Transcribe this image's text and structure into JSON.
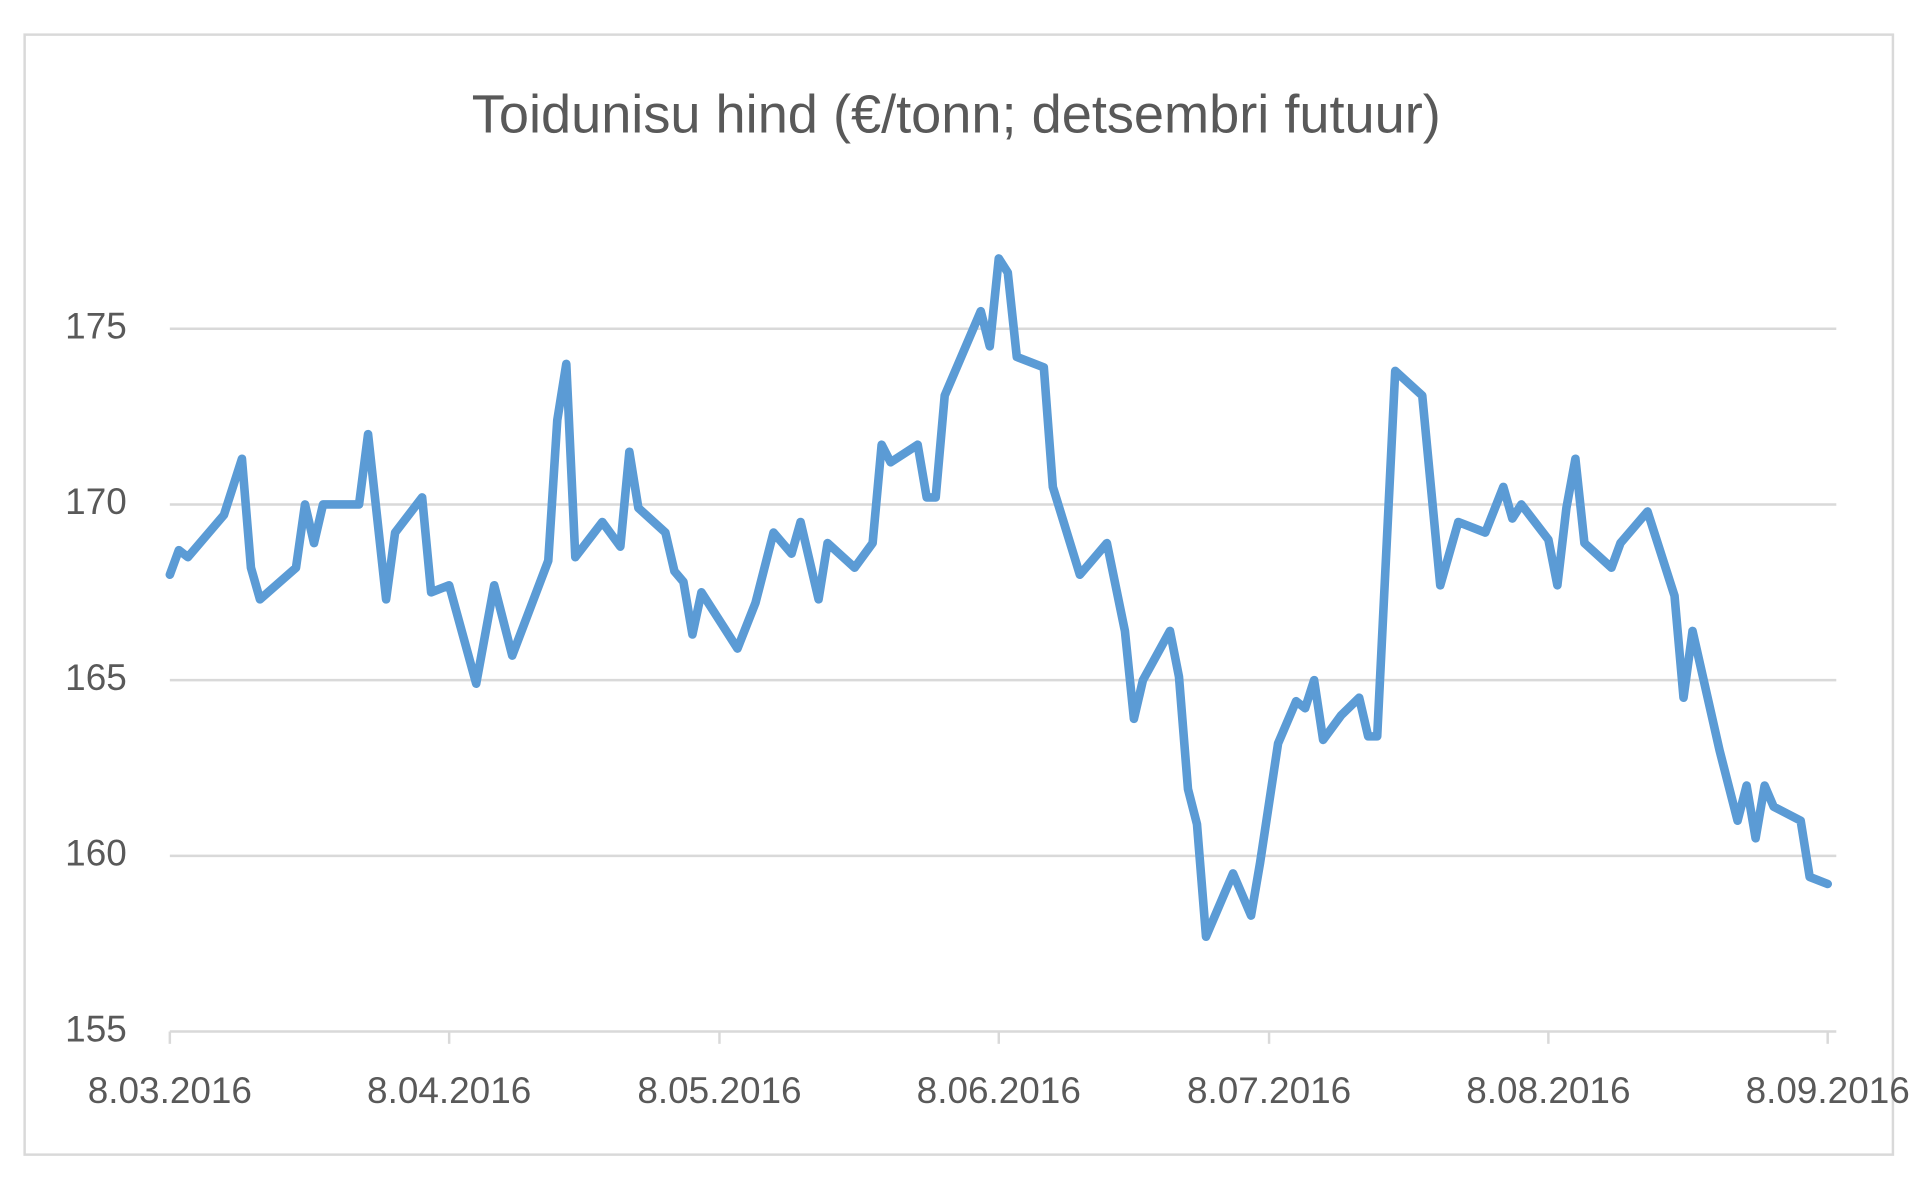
{
  "chart_data": {
    "type": "line",
    "title": "Toidunisu hind (€/tonn; detsembri futuur)",
    "x": [
      "8.03.2016",
      "9.03.2016",
      "10.03.2016",
      "14.03.2016",
      "16.03.2016",
      "17.03.2016",
      "18.03.2016",
      "22.03.2016",
      "23.03.2016",
      "24.03.2016",
      "25.03.2016",
      "29.03.2016",
      "30.03.2016",
      "1.04.2016",
      "2.04.2016",
      "5.04.2016",
      "6.04.2016",
      "8.04.2016",
      "11.04.2016",
      "13.04.2016",
      "15.04.2016",
      "19.04.2016",
      "20.04.2016",
      "21.04.2016",
      "22.04.2016",
      "25.04.2016",
      "27.04.2016",
      "28.04.2016",
      "29.04.2016",
      "2.05.2016",
      "3.05.2016",
      "4.05.2016",
      "5.05.2016",
      "6.05.2016",
      "10.05.2016",
      "12.05.2016",
      "14.05.2016",
      "16.05.2016",
      "17.05.2016",
      "19.05.2016",
      "20.05.2016",
      "23.05.2016",
      "25.05.2016",
      "26.05.2016",
      "27.05.2016",
      "30.05.2016",
      "31.05.2016",
      "1.06.2016",
      "2.06.2016",
      "6.06.2016",
      "7.06.2016",
      "8.06.2016",
      "9.06.2016",
      "10.06.2016",
      "13.06.2016",
      "14.06.2016",
      "17.06.2016",
      "20.06.2016",
      "22.06.2016",
      "23.06.2016",
      "24.06.2016",
      "27.06.2016",
      "28.06.2016",
      "29.06.2016",
      "30.06.2016",
      "1.07.2016",
      "4.07.2016",
      "6.07.2016",
      "7.07.2016",
      "9.07.2016",
      "11.07.2016",
      "12.07.2016",
      "13.07.2016",
      "14.07.2016",
      "16.07.2016",
      "18.07.2016",
      "19.07.2016",
      "20.07.2016",
      "22.07.2016",
      "25.07.2016",
      "27.07.2016",
      "29.07.2016",
      "1.08.2016",
      "3.08.2016",
      "4.08.2016",
      "5.08.2016",
      "8.08.2016",
      "9.08.2016",
      "10.08.2016",
      "11.08.2016",
      "12.08.2016",
      "15.08.2016",
      "16.08.2016",
      "19.08.2016",
      "22.08.2016",
      "23.08.2016",
      "24.08.2016",
      "27.08.2016",
      "29.08.2016",
      "30.08.2016",
      "31.08.2016",
      "1.09.2016",
      "2.09.2016",
      "5.09.2016",
      "6.09.2016",
      "8.09.2016"
    ],
    "series": [
      {
        "color": "#5b9bd5",
        "values": [
          168.0,
          168.7,
          168.5,
          169.7,
          171.3,
          168.2,
          167.3,
          168.2,
          170.0,
          168.9,
          170.0,
          170.0,
          172.0,
          167.3,
          169.2,
          170.2,
          167.5,
          167.7,
          164.9,
          167.7,
          165.7,
          168.4,
          172.4,
          174.0,
          168.5,
          169.5,
          168.8,
          171.5,
          169.9,
          169.2,
          168.1,
          167.8,
          166.3,
          167.5,
          165.9,
          167.2,
          169.2,
          168.6,
          169.5,
          167.3,
          168.9,
          168.2,
          168.9,
          171.7,
          171.2,
          171.7,
          170.2,
          170.2,
          173.1,
          175.5,
          174.5,
          177.0,
          176.6,
          174.2,
          173.9,
          170.5,
          168.0,
          168.9,
          166.4,
          163.9,
          165.0,
          166.4,
          165.1,
          161.9,
          160.9,
          157.7,
          159.5,
          158.3,
          159.8,
          163.2,
          164.4,
          164.2,
          165.0,
          163.3,
          164.0,
          164.5,
          163.4,
          163.4,
          173.8,
          173.1,
          167.7,
          169.5,
          169.2,
          170.5,
          169.6,
          170.0,
          169.0,
          167.7,
          169.9,
          171.3,
          168.9,
          168.2,
          168.9,
          169.8,
          167.4,
          164.5,
          166.4,
          163.0,
          161.0,
          162.0,
          160.5,
          162.0,
          161.4,
          161.0,
          159.4,
          159.2
        ]
      }
    ],
    "xlim": [
      "8.03.2016",
      "8.09.2016"
    ],
    "xticks": [
      "8.03.2016",
      "8.04.2016",
      "8.05.2016",
      "8.06.2016",
      "8.07.2016",
      "8.08.2016",
      "8.09.2016"
    ],
    "ylim": [
      155,
      175
    ],
    "yticks": [
      155,
      160,
      165,
      170,
      175
    ],
    "grid": true
  }
}
